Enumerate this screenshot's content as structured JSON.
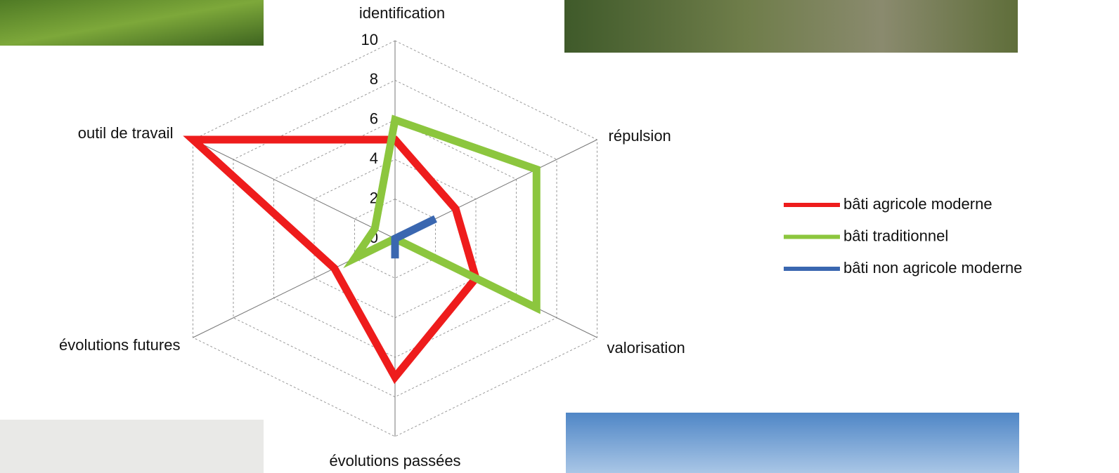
{
  "chart_data": {
    "type": "radar",
    "categories": [
      "identification",
      "répulsion",
      "valorisation",
      "évolutions passées",
      "évolutions futures",
      "outil de travail"
    ],
    "series": [
      {
        "name": "bâti agricole moderne",
        "color": "#ee1c1c",
        "values": [
          5,
          3,
          4,
          7,
          3,
          10
        ]
      },
      {
        "name": "bâti traditionnel",
        "color": "#8cc63e",
        "values": [
          6,
          7,
          7,
          0,
          2,
          1
        ]
      },
      {
        "name": "bâti non agricole moderne",
        "color": "#3a67b0",
        "values": [
          0,
          2,
          0,
          1,
          0,
          0
        ]
      }
    ],
    "rlim": [
      0,
      10
    ],
    "rticks": [
      0,
      2,
      4,
      6,
      8,
      10
    ],
    "grid": true,
    "legend": "right"
  }
}
